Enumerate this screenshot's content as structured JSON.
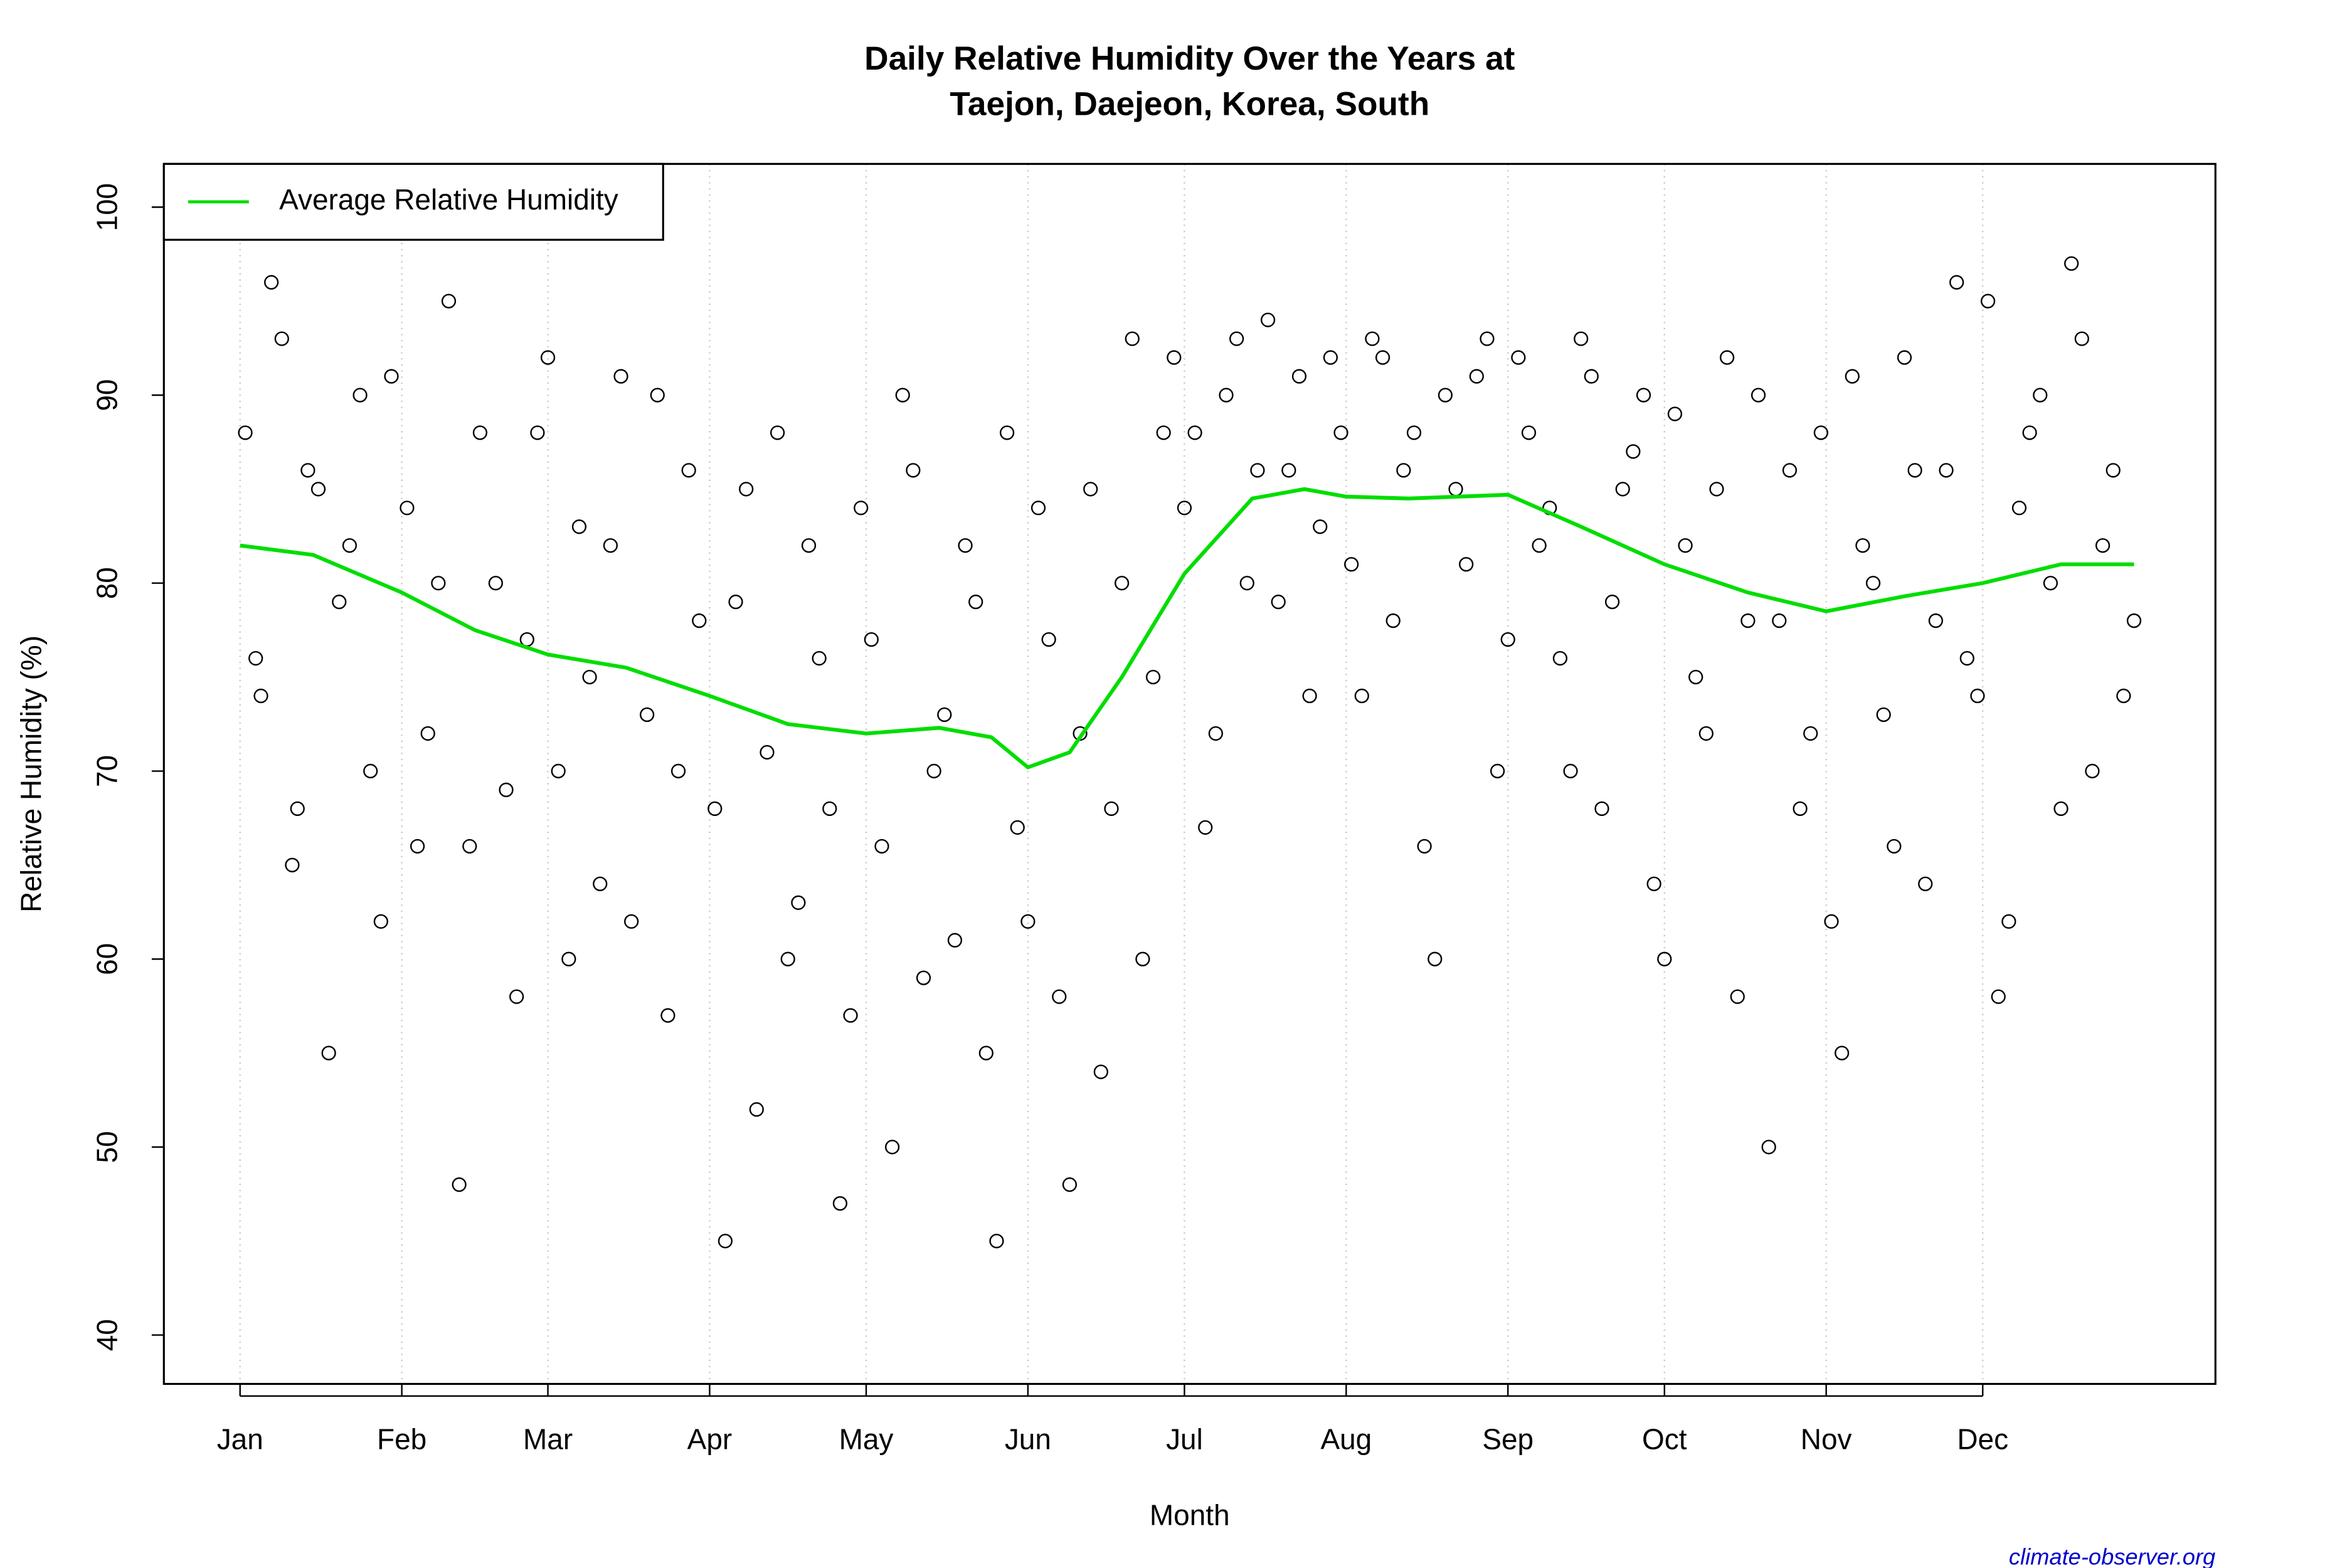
{
  "chart_data": {
    "type": "scatter",
    "title": [
      "Daily Relative Humidity Over the Years at",
      "Taejon, Daejeon, Korea, South"
    ],
    "x_label": "Month",
    "y_label": "Relative Humidity  (%)",
    "source": "climate-observer.org",
    "xlim": [
      -13.6,
      379.6
    ],
    "ylim": [
      37.4,
      102.3
    ],
    "xticks": [
      {
        "value": 1,
        "label": "Jan"
      },
      {
        "value": 32,
        "label": "Feb"
      },
      {
        "value": 60,
        "label": "Mar"
      },
      {
        "value": 91,
        "label": "Apr"
      },
      {
        "value": 121,
        "label": "May"
      },
      {
        "value": 152,
        "label": "Jun"
      },
      {
        "value": 182,
        "label": "Jul"
      },
      {
        "value": 213,
        "label": "Aug"
      },
      {
        "value": 244,
        "label": "Sep"
      },
      {
        "value": 274,
        "label": "Oct"
      },
      {
        "value": 305,
        "label": "Nov"
      },
      {
        "value": 335,
        "label": "Dec"
      }
    ],
    "yticks": [
      40,
      50,
      60,
      70,
      80,
      90,
      100
    ],
    "grid": true,
    "point_color": "#000000",
    "legend_position": "top-left",
    "x": [
      2,
      5,
      9,
      12,
      16,
      20,
      24,
      28,
      33,
      37,
      41,
      45,
      50,
      54,
      58,
      62,
      66,
      70,
      74,
      79,
      83,
      87,
      92,
      96,
      100,
      104,
      108,
      112,
      116,
      120,
      124,
      128,
      132,
      136,
      140,
      144,
      148,
      152,
      156,
      160,
      164,
      168,
      172,
      176,
      180,
      184,
      188,
      192,
      196,
      200,
      204,
      208,
      212,
      216,
      220,
      224,
      228,
      232,
      236,
      240,
      244,
      248,
      252,
      256,
      260,
      264,
      268,
      272,
      276,
      280,
      284,
      288,
      292,
      296,
      300,
      304,
      308,
      312,
      316,
      320,
      324,
      328,
      332,
      336,
      340,
      344,
      348,
      352,
      356,
      360,
      364,
      4,
      7,
      11,
      14,
      18,
      22,
      26,
      30,
      35,
      39,
      43,
      47,
      52,
      56,
      60,
      64,
      68,
      72,
      76,
      81,
      85,
      89,
      94,
      98,
      102,
      106,
      110,
      114,
      118,
      122,
      126,
      130,
      134,
      138,
      142,
      146,
      150,
      154,
      158,
      162,
      166,
      170,
      174,
      178,
      182,
      186,
      190,
      194,
      198,
      202,
      206,
      210,
      214,
      218,
      222,
      226,
      230,
      234,
      238,
      242,
      246,
      250,
      254,
      258,
      262,
      266,
      270,
      274,
      278,
      282,
      286,
      290,
      294,
      298,
      302,
      306,
      310,
      314,
      318,
      322,
      326,
      330,
      334,
      338,
      342,
      346,
      350,
      354,
      358,
      362
    ],
    "values": [
      88,
      74,
      93,
      68,
      85,
      79,
      90,
      62,
      84,
      72,
      95,
      66,
      80,
      58,
      88,
      70,
      83,
      64,
      91,
      73,
      57,
      86,
      68,
      79,
      52,
      88,
      63,
      76,
      47,
      84,
      66,
      90,
      59,
      73,
      82,
      55,
      88,
      62,
      77,
      48,
      85,
      68,
      93,
      75,
      92,
      88,
      72,
      93,
      86,
      79,
      91,
      83,
      88,
      74,
      92,
      86,
      66,
      90,
      81,
      93,
      77,
      88,
      84,
      70,
      91,
      79,
      87,
      64,
      89,
      75,
      85,
      58,
      90,
      78,
      68,
      88,
      55,
      82,
      73,
      92,
      64,
      86,
      76,
      95,
      62,
      88,
      80,
      97,
      70,
      86,
      78,
      76,
      96,
      65,
      86,
      55,
      82,
      70,
      91,
      66,
      80,
      48,
      88,
      69,
      77,
      92,
      60,
      75,
      82,
      62,
      90,
      70,
      78,
      45,
      85,
      71,
      60,
      82,
      68,
      57,
      77,
      50,
      86,
      70,
      61,
      79,
      45,
      67,
      84,
      58,
      72,
      54,
      80,
      60,
      88,
      84,
      67,
      90,
      80,
      94,
      86,
      74,
      92,
      81,
      93,
      78,
      88,
      60,
      85,
      91,
      70,
      92,
      82,
      76,
      93,
      68,
      85,
      90,
      60,
      82,
      72,
      92,
      78,
      50,
      86,
      72,
      62,
      91,
      80,
      66,
      86,
      78,
      96,
      74,
      58,
      84,
      90,
      68,
      93,
      82,
      74
    ],
    "lines": [
      {
        "name": "Average Relative Humidity",
        "color": "#00dd00",
        "x": [
          1,
          15,
          32,
          46,
          60,
          75,
          91,
          106,
          121,
          135,
          145,
          152,
          160,
          170,
          182,
          195,
          205,
          213,
          225,
          244,
          258,
          274,
          290,
          305,
          320,
          335,
          350,
          364
        ],
        "values": [
          82,
          81.5,
          79.5,
          77.5,
          76.2,
          75.5,
          74,
          72.5,
          72,
          72.3,
          71.8,
          70.2,
          71,
          75,
          80.5,
          84.5,
          85,
          84.6,
          84.5,
          84.7,
          83,
          81,
          79.5,
          78.5,
          79.3,
          80,
          81,
          81
        ]
      }
    ]
  }
}
